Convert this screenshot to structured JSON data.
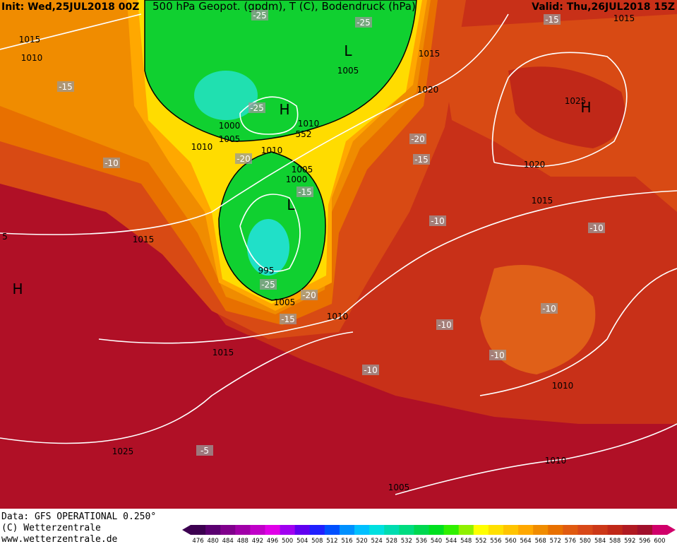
{
  "header": {
    "init": "Init: Wed,25JUL2018 00Z",
    "fields": "500 hPa Geopot. (gpdm), T (C), Bodendruck (hPa)",
    "valid": "Valid: Thu,26JUL2018 15Z"
  },
  "footer": {
    "data": "Data: GFS OPERATIONAL 0.250°",
    "copyright": "(C) Wetterzentrale",
    "url": "www.wetterzentrale.de"
  },
  "colorbar": {
    "labels": [
      "476",
      "480",
      "484",
      "488",
      "492",
      "496",
      "500",
      "504",
      "508",
      "512",
      "516",
      "520",
      "524",
      "528",
      "532",
      "536",
      "540",
      "544",
      "548",
      "552",
      "556",
      "560",
      "564",
      "568",
      "572",
      "576",
      "580",
      "584",
      "588",
      "592",
      "596",
      "600"
    ],
    "colors": [
      "#3c0050",
      "#5a0070",
      "#80008c",
      "#a000a8",
      "#c000c8",
      "#e000e8",
      "#a000f0",
      "#6000f0",
      "#2020ff",
      "#0050ff",
      "#0090ff",
      "#00c0ff",
      "#00e0e0",
      "#00dcb0",
      "#00dc80",
      "#00d850",
      "#00e020",
      "#30f000",
      "#90f000",
      "#ffff00",
      "#ffe000",
      "#ffc400",
      "#ffa800",
      "#f08c00",
      "#e87000",
      "#e05a10",
      "#d84818",
      "#cc3818",
      "#c02818",
      "#b01a22",
      "#a0102c",
      "#d0006a"
    ]
  },
  "map_labels": [
    "1015",
    "1010",
    "-15",
    "-10",
    "-25",
    "-25",
    "L",
    "1005",
    "1015",
    "1020",
    "-15",
    "1015",
    "1025",
    "H",
    "H",
    "-25",
    "1000",
    "1005",
    "1010",
    "1010",
    "552",
    "1010",
    "-20",
    "-20",
    "-15",
    "1005",
    "1000",
    "-15",
    "L",
    "1020",
    "1015",
    "-10",
    "-10",
    "1015",
    "H",
    "995",
    "-25",
    "-20",
    "1005",
    "-15",
    "1010",
    "-10",
    "-10",
    "1015",
    "-10",
    "-10",
    "1010",
    "1025",
    "-5",
    "1010",
    "1005",
    "5"
  ]
}
